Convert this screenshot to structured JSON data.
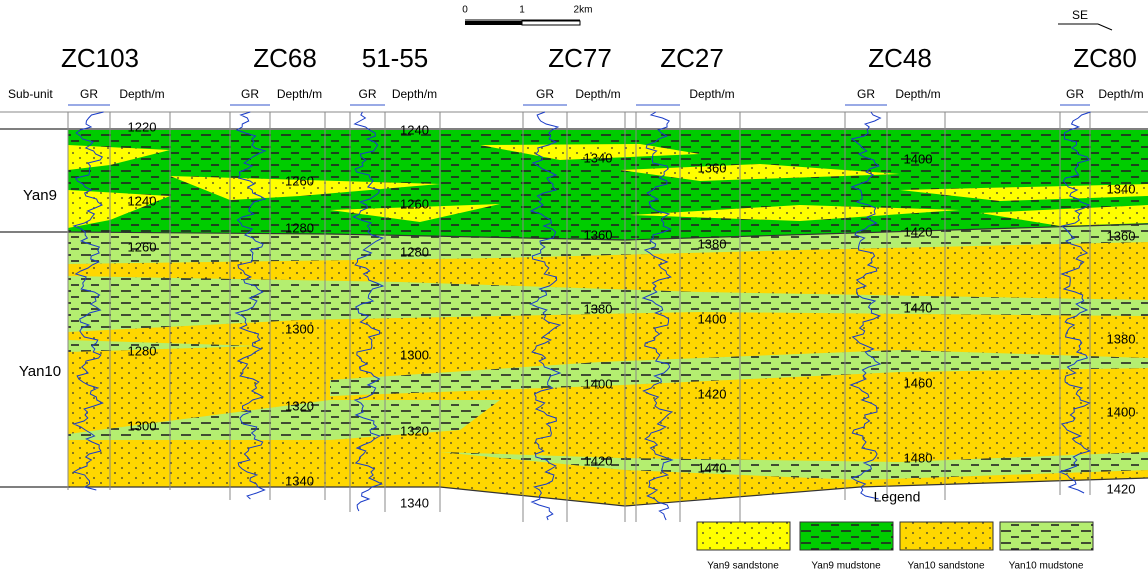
{
  "scale_bar": {
    "labels": [
      "0",
      "1",
      "2km"
    ]
  },
  "direction": "SE",
  "header": {
    "subunit": "Sub-unit"
  },
  "wells": [
    {
      "name": "ZC103",
      "gr": "GR",
      "depth_label": "Depth/m",
      "depths": [
        1220,
        1240,
        1260,
        1280,
        1300
      ]
    },
    {
      "name": "ZC68",
      "gr": "GR",
      "depth_label": "Depth/m",
      "depths": [
        1260,
        1280,
        1300,
        1320,
        1340
      ]
    },
    {
      "name": "51-55",
      "gr": "GR",
      "depth_label": "Depth/m",
      "depths": [
        1240,
        1260,
        1280,
        1300,
        1320,
        1340
      ]
    },
    {
      "name": "ZC77",
      "gr": "GR",
      "depth_label": "Depth/m",
      "depths": [
        1340,
        1360,
        1380,
        1400,
        1420
      ]
    },
    {
      "name": "ZC27",
      "depth_label": "Depth/m",
      "depths": [
        1360,
        1380,
        1400,
        1420,
        1440
      ]
    },
    {
      "name": "ZC48",
      "gr": "GR",
      "depth_label": "Depth/m",
      "depths": [
        1400,
        1420,
        1440,
        1460,
        1480
      ]
    },
    {
      "name": "ZC80",
      "gr": "GR",
      "depth_label": "Depth/m",
      "depths": [
        1340,
        1360,
        1380,
        1400,
        1420
      ]
    }
  ],
  "units": [
    "Yan9",
    "Yan10"
  ],
  "legend": {
    "title": "Legend",
    "items": [
      {
        "label": "Yan9 sandstone",
        "color": "#ffff00"
      },
      {
        "label": "Yan9 mudstone",
        "color": "#00cc00"
      },
      {
        "label": "Yan10 sandstone",
        "color": "#ffd700"
      },
      {
        "label": "Yan10 mudstone",
        "color": "#b4ee70"
      }
    ]
  }
}
